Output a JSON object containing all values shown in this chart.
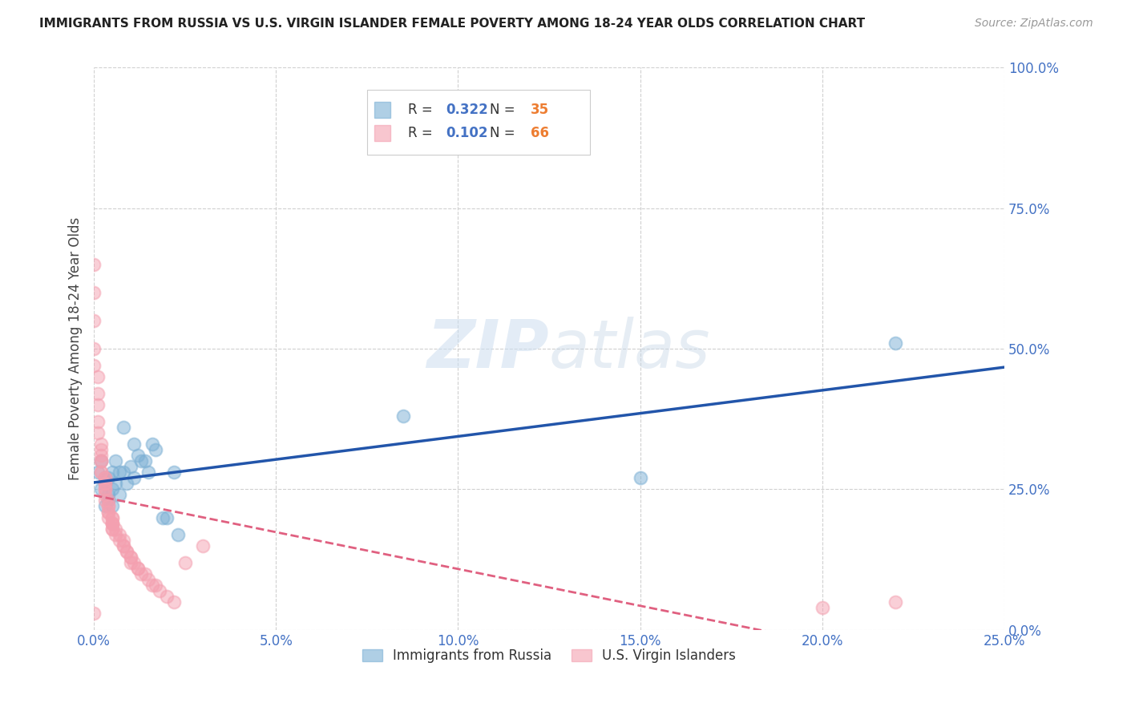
{
  "title": "IMMIGRANTS FROM RUSSIA VS U.S. VIRGIN ISLANDER FEMALE POVERTY AMONG 18-24 YEAR OLDS CORRELATION CHART",
  "source": "Source: ZipAtlas.com",
  "ylabel_left": "Female Poverty Among 18-24 Year Olds",
  "watermark_zip": "ZIP",
  "watermark_atlas": "atlas",
  "series1_label": "Immigrants from Russia",
  "series1_color": "#7bafd4",
  "series1_R": "0.322",
  "series1_N": "35",
  "series2_label": "U.S. Virgin Islanders",
  "series2_color": "#f4a0b0",
  "series2_R": "0.102",
  "series2_N": "66",
  "trendline1_color": "#2255aa",
  "trendline2_color": "#e06080",
  "right_axis_color": "#4472c4",
  "legend_R_color": "#4472c4",
  "legend_N_color": "#ed7d31",
  "xlim": [
    0.0,
    0.25
  ],
  "ylim": [
    0.0,
    1.0
  ],
  "x_ticks": [
    0.0,
    0.05,
    0.1,
    0.15,
    0.2,
    0.25
  ],
  "y_ticks_right": [
    0.0,
    0.25,
    0.5,
    0.75,
    1.0
  ],
  "background_color": "#ffffff",
  "grid_color": "#d0d0d0",
  "series1_x": [
    0.001,
    0.002,
    0.002,
    0.003,
    0.003,
    0.003,
    0.004,
    0.004,
    0.004,
    0.005,
    0.005,
    0.005,
    0.006,
    0.006,
    0.007,
    0.007,
    0.008,
    0.008,
    0.009,
    0.01,
    0.011,
    0.011,
    0.012,
    0.013,
    0.014,
    0.015,
    0.016,
    0.017,
    0.019,
    0.02,
    0.022,
    0.023,
    0.085,
    0.15,
    0.22
  ],
  "series1_y": [
    0.28,
    0.3,
    0.25,
    0.27,
    0.26,
    0.22,
    0.24,
    0.27,
    0.23,
    0.28,
    0.25,
    0.22,
    0.3,
    0.26,
    0.28,
    0.24,
    0.36,
    0.28,
    0.26,
    0.29,
    0.33,
    0.27,
    0.31,
    0.3,
    0.3,
    0.28,
    0.33,
    0.32,
    0.2,
    0.2,
    0.28,
    0.17,
    0.38,
    0.27,
    0.51
  ],
  "series2_x": [
    0.0,
    0.0,
    0.0,
    0.0,
    0.0,
    0.001,
    0.001,
    0.001,
    0.001,
    0.001,
    0.002,
    0.002,
    0.002,
    0.002,
    0.002,
    0.002,
    0.002,
    0.003,
    0.003,
    0.003,
    0.003,
    0.003,
    0.003,
    0.003,
    0.003,
    0.004,
    0.004,
    0.004,
    0.004,
    0.004,
    0.004,
    0.005,
    0.005,
    0.005,
    0.005,
    0.005,
    0.005,
    0.005,
    0.006,
    0.006,
    0.007,
    0.007,
    0.008,
    0.008,
    0.008,
    0.009,
    0.009,
    0.01,
    0.01,
    0.01,
    0.011,
    0.012,
    0.012,
    0.013,
    0.014,
    0.015,
    0.016,
    0.017,
    0.018,
    0.02,
    0.022,
    0.025,
    0.03,
    0.2,
    0.22,
    0.0
  ],
  "series2_y": [
    0.65,
    0.6,
    0.55,
    0.5,
    0.47,
    0.45,
    0.42,
    0.4,
    0.37,
    0.35,
    0.33,
    0.32,
    0.31,
    0.3,
    0.3,
    0.28,
    0.28,
    0.27,
    0.27,
    0.26,
    0.26,
    0.25,
    0.25,
    0.24,
    0.23,
    0.23,
    0.22,
    0.22,
    0.21,
    0.21,
    0.2,
    0.2,
    0.2,
    0.19,
    0.19,
    0.19,
    0.18,
    0.18,
    0.18,
    0.17,
    0.17,
    0.16,
    0.16,
    0.15,
    0.15,
    0.14,
    0.14,
    0.13,
    0.13,
    0.12,
    0.12,
    0.11,
    0.11,
    0.1,
    0.1,
    0.09,
    0.08,
    0.08,
    0.07,
    0.06,
    0.05,
    0.12,
    0.15,
    0.04,
    0.05,
    0.03
  ]
}
